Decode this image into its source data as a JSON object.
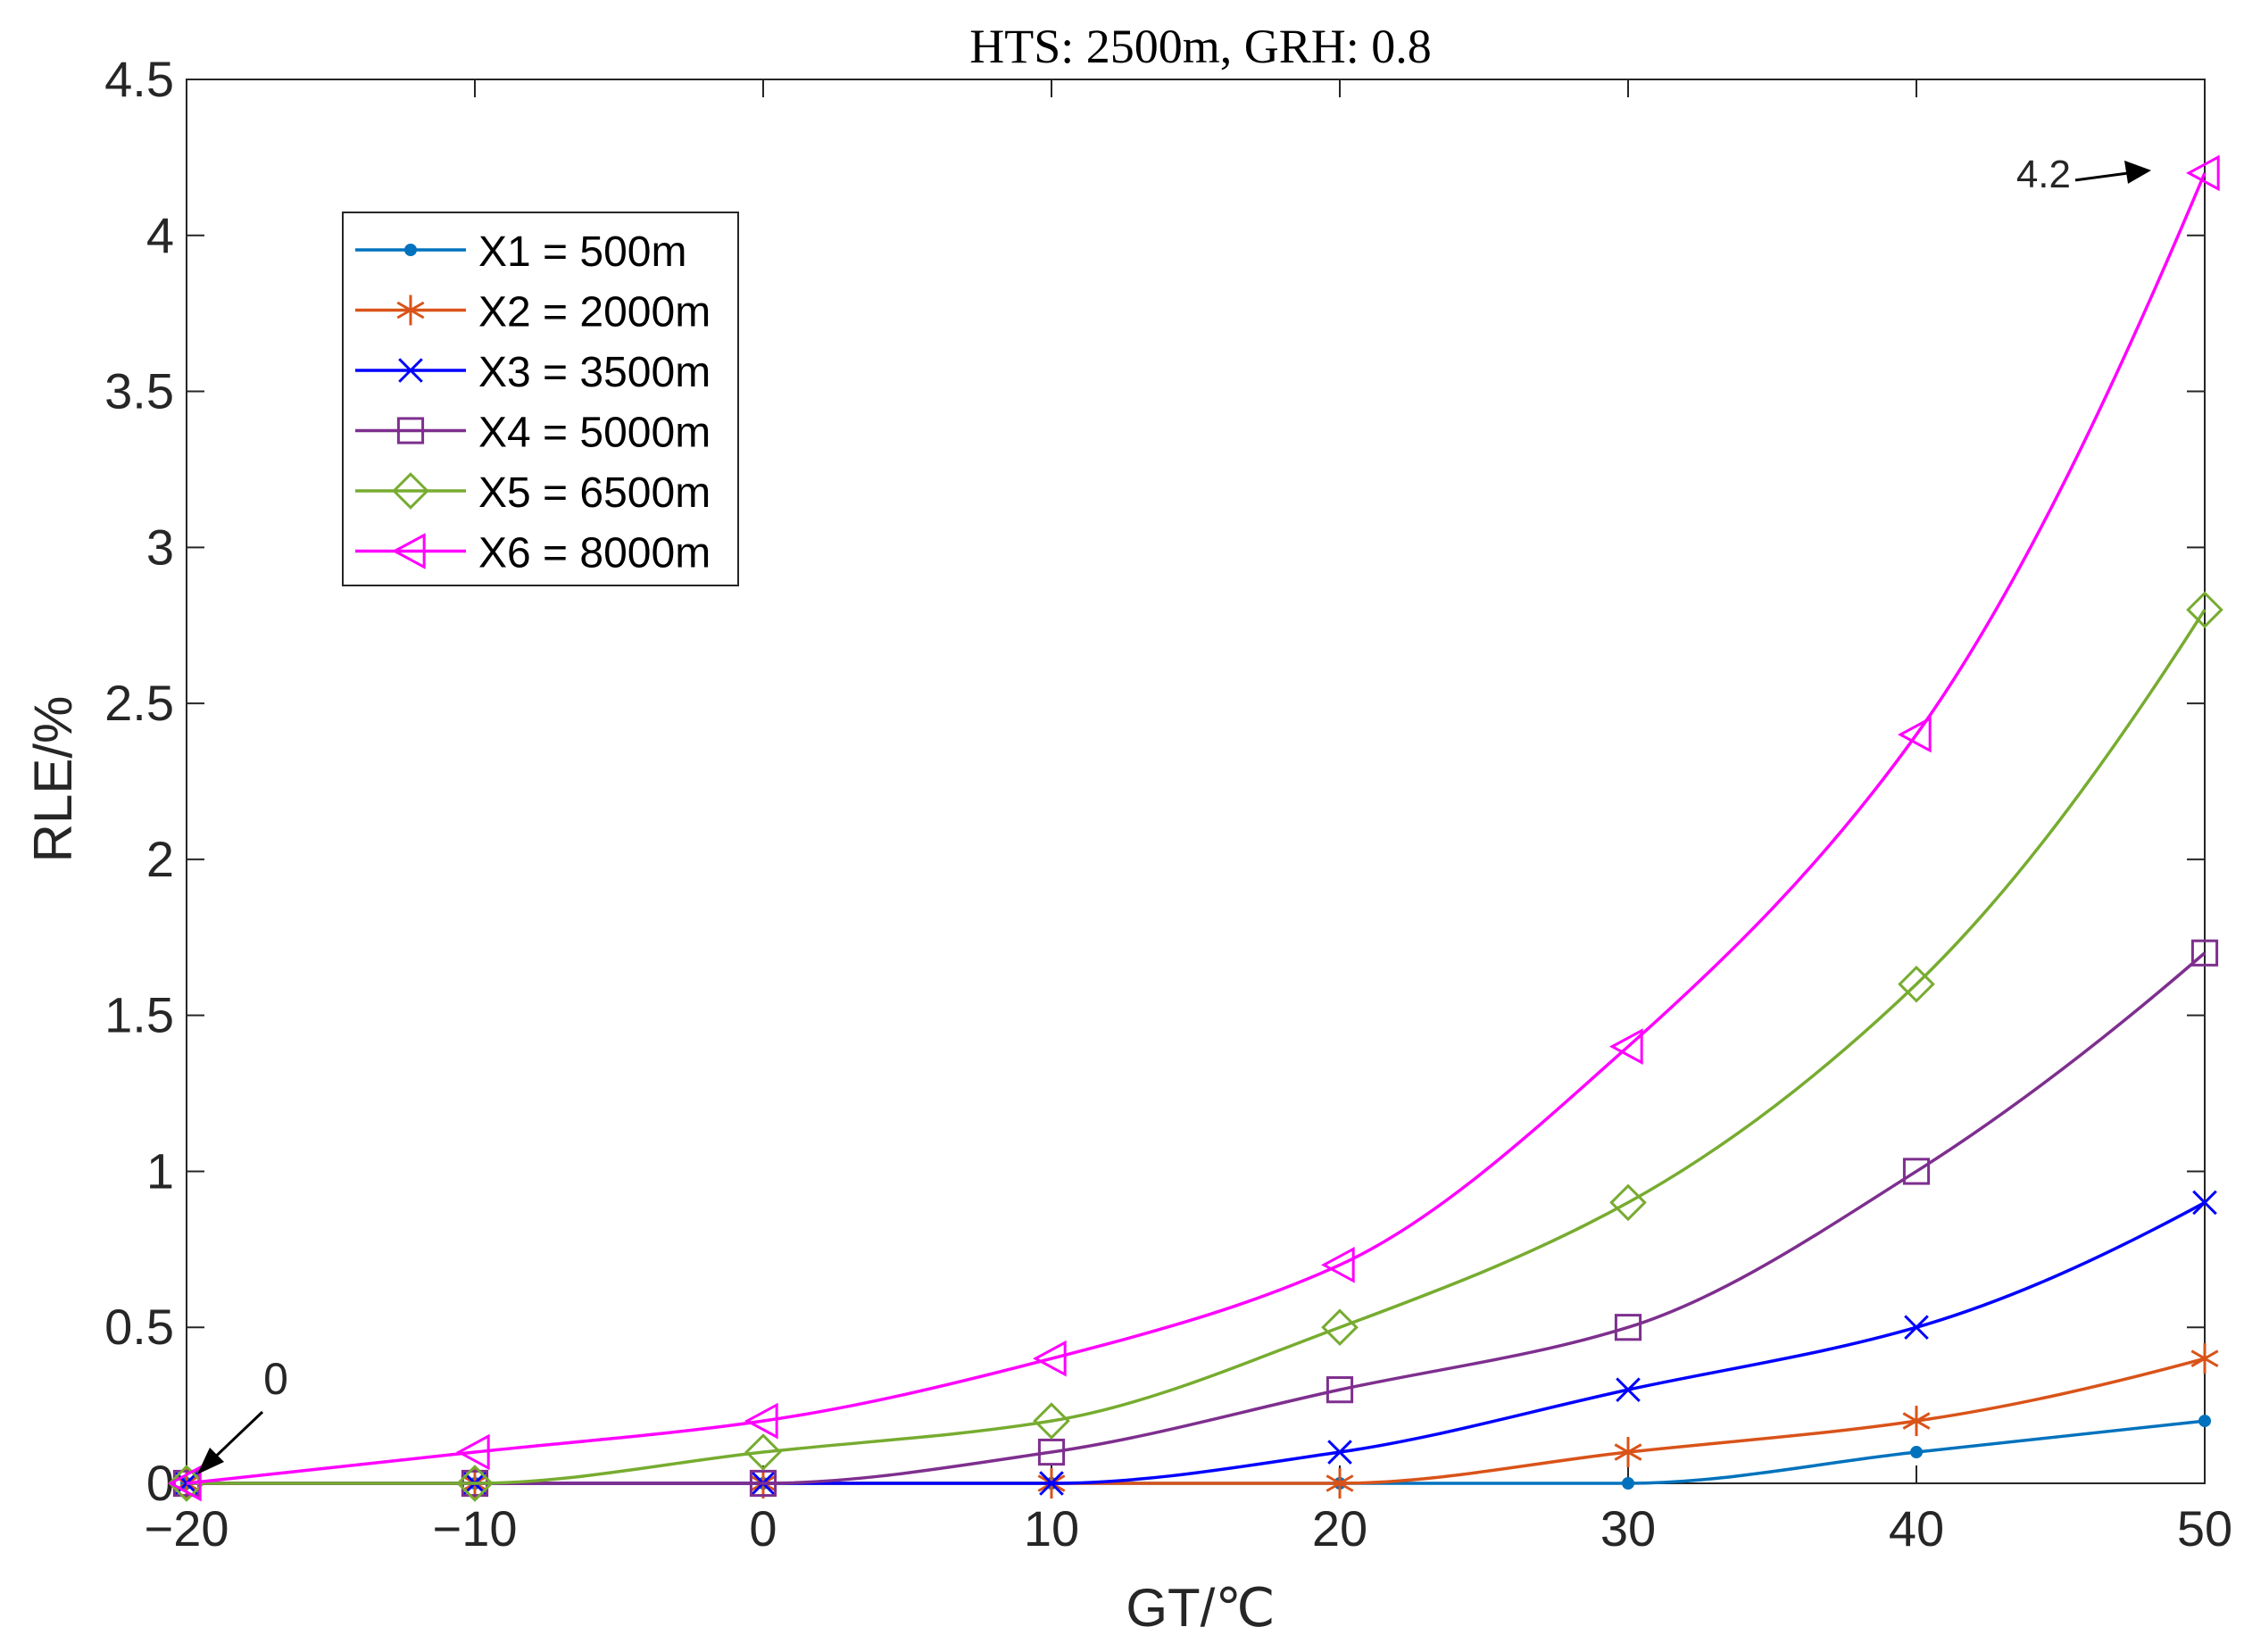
{
  "chart_data": {
    "type": "line",
    "title": "HTS: 2500m, GRH: 0.8",
    "xlabel": "GT/℃",
    "ylabel": "RLE/%",
    "xlim": [
      -20,
      50
    ],
    "ylim": [
      0,
      4.5
    ],
    "x": [
      -20,
      -10,
      0,
      10,
      20,
      30,
      40,
      50
    ],
    "x_tick_labels": [
      "−20",
      "−10",
      "0",
      "10",
      "20",
      "30",
      "40",
      "50"
    ],
    "y_ticks": [
      0,
      0.5,
      1,
      1.5,
      2,
      2.5,
      3,
      3.5,
      4,
      4.5
    ],
    "y_tick_labels": [
      "0",
      "0.5",
      "1",
      "1.5",
      "2",
      "2.5",
      "3",
      "3.5",
      "4",
      "4.5"
    ],
    "grid": false,
    "legend_position": "upper-left",
    "series": [
      {
        "name": "X1 = 500m",
        "marker": "dot",
        "color": "#0072BD",
        "values": [
          0,
          0,
          0,
          0,
          0,
          0,
          0.1,
          0.2
        ]
      },
      {
        "name": "X2 = 2000m",
        "marker": "asterisk",
        "color": "#D95319",
        "values": [
          0,
          0,
          0,
          0,
          0,
          0.1,
          0.2,
          0.4
        ]
      },
      {
        "name": "X3 = 3500m",
        "marker": "x",
        "color": "#0000FF",
        "values": [
          0,
          0,
          0,
          0,
          0.1,
          0.3,
          0.5,
          0.9
        ]
      },
      {
        "name": "X4 = 5000m",
        "marker": "square",
        "color": "#7E2F8E",
        "values": [
          0,
          0,
          0,
          0.1,
          0.3,
          0.5,
          1.0,
          1.7
        ]
      },
      {
        "name": "X5 = 6500m",
        "marker": "diamond",
        "color": "#77AC30",
        "values": [
          0,
          0,
          0.1,
          0.2,
          0.5,
          0.9,
          1.6,
          2.8
        ]
      },
      {
        "name": "X6 = 8000m",
        "marker": "triangle-left",
        "color": "#FF00FF",
        "values": [
          0,
          0.1,
          0.2,
          0.4,
          0.7,
          1.4,
          2.4,
          4.2
        ]
      }
    ],
    "annotations": [
      {
        "text": "0",
        "x": -20,
        "y": 0
      },
      {
        "text": "4.2",
        "x": 50,
        "y": 4.2
      }
    ]
  }
}
